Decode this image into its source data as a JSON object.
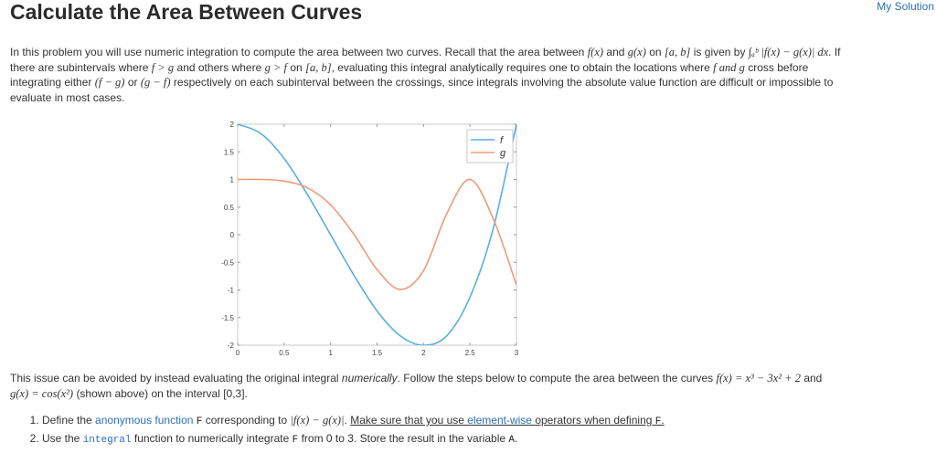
{
  "header": {
    "title": "Calculate the Area Between Curves",
    "my_solution": "My Solution"
  },
  "intro": {
    "p1": "In this problem you will use numeric integration to compute the area between two curves. Recall that the area between",
    "f_x": "f(x)",
    "and1": "and",
    "g_x": "g(x)",
    "on": "on",
    "interval_ab": "[a, b]",
    "is_given_by": "is given by",
    "integral_expr": "∫ₐᵇ |f(x) − g(x)| dx.",
    "if": "If",
    "p2a": "there are subintervals where",
    "f_gt_g": "f > g",
    "and_others": "and others where",
    "g_gt_f": "g > f",
    "on2": "on",
    "interval_ab2": "[a, b]",
    "p2b": ", evaluating this integral analytically requires one to obtain the locations where",
    "f_and_g": "f and g",
    "p2c": "cross before",
    "p3a": "integrating either",
    "f_minus_g": "(f − g)",
    "or": "or",
    "g_minus_f": "(g − f)",
    "p3b": "respectively on each subinterval between the crossings, since integrals involving the absolute value function are difficult or impossible to",
    "p4": "evaluate in most cases."
  },
  "body2": {
    "p1a": "This issue can be avoided by instead evaluating the original integral",
    "numerically": "numerically",
    "p1b": ". Follow the steps below to compute the area between the curves",
    "f_def": "f(x) = x³ − 3x² + 2",
    "and": "and",
    "g_def": "g(x) = cos(x²)",
    "p2": "(shown above) on the interval [0,3]."
  },
  "steps": [
    {
      "a": "Define the",
      "link": "anonymous function",
      "code": "F",
      "b": "corresponding to",
      "expr": "|f(x) − g(x)|",
      "dot": ".",
      "note_a": "Make sure that you use",
      "note_link": "element-wise",
      "note_b": "operators when defining",
      "note_code": "F",
      "note_end": "."
    },
    {
      "a": "Use the",
      "code_link": "integral",
      "b": "function to numerically integrate",
      "code": "F",
      "c": "from 0 to 3. Store the result in the variable",
      "var": "A",
      "end": "."
    }
  ],
  "chart_data": {
    "type": "line",
    "x_range": [
      0,
      3
    ],
    "ylim": [
      -2,
      2
    ],
    "xticks": [
      "0",
      "0.5",
      "1",
      "1.5",
      "2",
      "2.5",
      "3"
    ],
    "yticks": [
      "-2",
      "-1.5",
      "-1",
      "-0.5",
      "0",
      "0.5",
      "1",
      "1.5",
      "2"
    ],
    "series": [
      {
        "name": "f",
        "color": "#5aaede",
        "x": [
          0,
          0.25,
          0.5,
          0.75,
          1,
          1.25,
          1.5,
          1.75,
          2,
          2.25,
          2.5,
          2.75,
          3
        ],
        "y": [
          2,
          1.83,
          1.38,
          0.73,
          0,
          -0.73,
          -1.38,
          -1.83,
          -2,
          -1.83,
          -1.13,
          0.11,
          2
        ]
      },
      {
        "name": "g",
        "color": "#ee9a78",
        "x": [
          0,
          0.25,
          0.5,
          0.75,
          1,
          1.25,
          1.5,
          1.75,
          2,
          2.25,
          2.5,
          2.75,
          3
        ],
        "y": [
          1,
          1.0,
          0.97,
          0.85,
          0.54,
          0.01,
          -0.63,
          -0.99,
          -0.65,
          0.38,
          1.0,
          0.29,
          -0.91
        ]
      }
    ],
    "legend": "top-right",
    "grid": false
  }
}
